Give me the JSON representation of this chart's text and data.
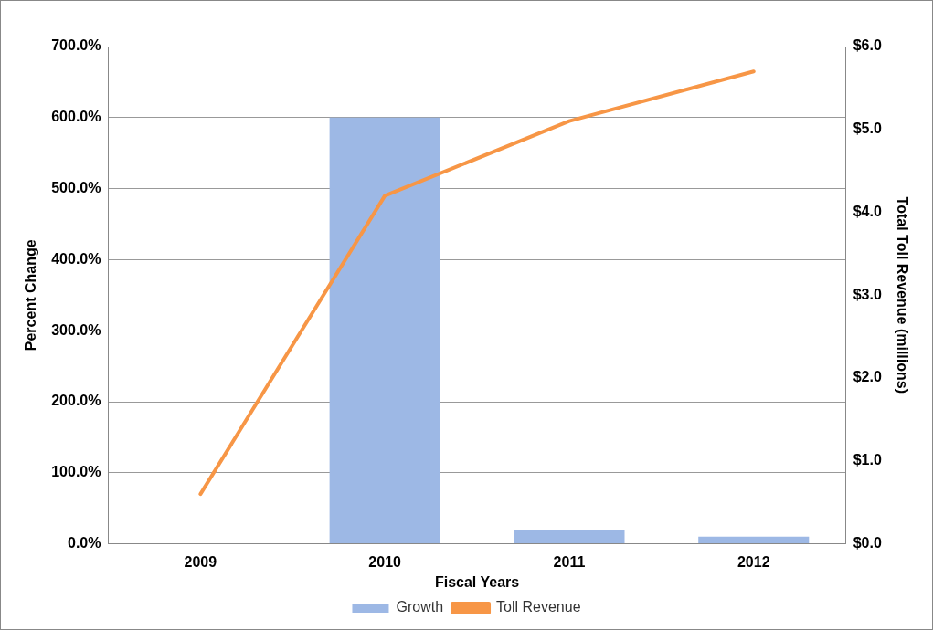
{
  "chart_data": {
    "type": "bar",
    "xlabel": "Fiscal Years",
    "ylabel": "Percent Change",
    "y2label": "Total Toll Revenue (millions)",
    "categories": [
      "2009",
      "2010",
      "2011",
      "2012"
    ],
    "series": [
      {
        "name": "Growth",
        "color": "#9db8e5",
        "values": [
          null,
          600,
          20,
          10
        ]
      },
      {
        "name": "Toll Revenue",
        "type": "line",
        "axis": "y2",
        "color": "#f79646",
        "values": [
          0.6,
          4.2,
          5.1,
          5.7
        ]
      }
    ],
    "ylim": [
      0,
      700
    ],
    "yticks": [
      {
        "value": 0,
        "label": "0.0%"
      },
      {
        "value": 100,
        "label": "100.0%"
      },
      {
        "value": 200,
        "label": "200.0%"
      },
      {
        "value": 300,
        "label": "300.0%"
      },
      {
        "value": 400,
        "label": "400.0%"
      },
      {
        "value": 500,
        "label": "500.0%"
      },
      {
        "value": 600,
        "label": "600.0%"
      },
      {
        "value": 700,
        "label": "700.0%"
      }
    ],
    "y2lim": [
      0,
      6
    ],
    "y2ticks": [
      {
        "value": 0,
        "label": "$0.0"
      },
      {
        "value": 1,
        "label": "$1.0"
      },
      {
        "value": 2,
        "label": "$2.0"
      },
      {
        "value": 3,
        "label": "$3.0"
      },
      {
        "value": 4,
        "label": "$4.0"
      },
      {
        "value": 5,
        "label": "$5.0"
      },
      {
        "value": 6,
        "label": "$6.0"
      }
    ],
    "grid": "y",
    "legend": "bottom",
    "marker": "none"
  }
}
